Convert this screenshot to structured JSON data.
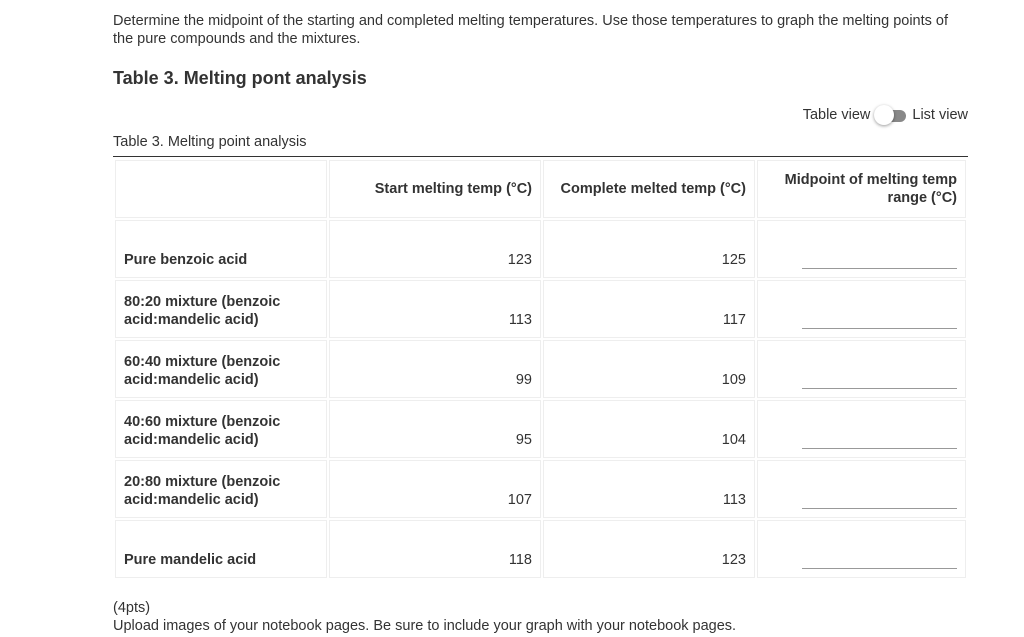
{
  "intro": "Determine the midpoint of the starting and completed melting temperatures. Use those temperatures to graph the melting points of the pure compounds and the mixtures.",
  "heading": "Table 3. Melting pont analysis",
  "toggle": {
    "left": "Table view",
    "right": "List view",
    "state": "table"
  },
  "caption": "Table 3. Melting point analysis",
  "columns": [
    "",
    "Start melting temp (°C)",
    "Complete melted temp (°C)",
    "Midpoint of melting temp range (°C)"
  ],
  "rows": [
    {
      "label": "Pure benzoic acid",
      "start": "123",
      "complete": "125",
      "midpoint": ""
    },
    {
      "label": "80:20 mixture (benzoic acid:mandelic acid)",
      "start": "113",
      "complete": "117",
      "midpoint": ""
    },
    {
      "label": "60:40 mixture (benzoic acid:mandelic acid)",
      "start": "99",
      "complete": "109",
      "midpoint": ""
    },
    {
      "label": "40:60 mixture (benzoic acid:mandelic acid)",
      "start": "95",
      "complete": "104",
      "midpoint": ""
    },
    {
      "label": "20:80 mixture (benzoic acid:mandelic acid)",
      "start": "107",
      "complete": "113",
      "midpoint": ""
    },
    {
      "label": "Pure mandelic acid",
      "start": "118",
      "complete": "123",
      "midpoint": ""
    }
  ],
  "footer": {
    "points": "(4pts)",
    "instruction": "Upload images of your notebook pages. Be sure to include your graph with your notebook pages."
  }
}
